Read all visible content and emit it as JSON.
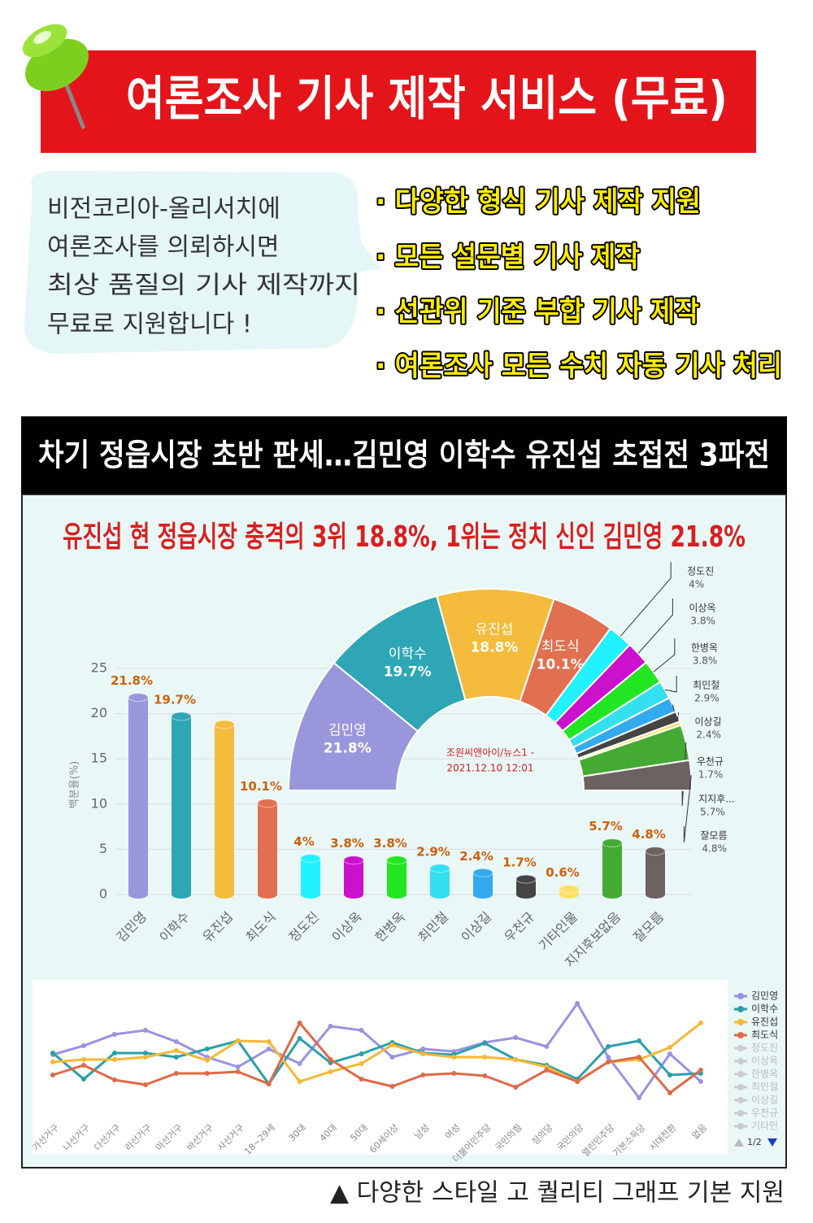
{
  "header": {
    "title": "여론조사 기사 제작 서비스 (무료)"
  },
  "intro": {
    "lines": [
      "비전코리아-올리서치에",
      "여론조사를 의뢰하시면",
      "최상 품질의 기사 제작까지",
      "무료로 지원합니다 !"
    ]
  },
  "features": [
    "· 다양한 형식 기사 제작 지원",
    "· 모든 설문별 기사 제작",
    "· 선관위 기준 부합 기사 제작",
    "· 여론조사 모든 수치 자동 기사 처리"
  ],
  "article": {
    "headline": "차기 정읍시장 초반 판세…김민영 이학수 유진섭 초접전 3파전",
    "subtitle": "유진섭 현 정읍시장 충격의 3위 18.8%, 1위는 정치 신인 김민영 21.8%"
  },
  "chart_data": [
    {
      "type": "bar",
      "y_label": "백분율(%)",
      "categories": [
        "김민영",
        "이학수",
        "유진섭",
        "최도식",
        "정도진",
        "이상옥",
        "한병옥",
        "최민철",
        "이상길",
        "우천규",
        "기타인물",
        "지지후보없음",
        "잘모름"
      ],
      "values": [
        21.8,
        19.7,
        18.8,
        10.1,
        4,
        3.8,
        3.8,
        2.9,
        2.4,
        1.7,
        0.6,
        5.7,
        4.8
      ],
      "value_labels": [
        "21.8%",
        "19.7%",
        null,
        "10.1%",
        "4%",
        "3.8%",
        "3.8%",
        "2.9%",
        "2.4%",
        "1.7%",
        "0.6%",
        "5.7%",
        "4.8%"
      ],
      "colors": [
        "#9a96dc",
        "#2ea6b5",
        "#f5bb3c",
        "#e07050",
        "#22f2ff",
        "#cc11cc",
        "#22e622",
        "#33e0f0",
        "#33aaee",
        "#444444",
        "#ffe066",
        "#44aa33",
        "#6d6262"
      ],
      "ylim": [
        0,
        25
      ],
      "yticks": [
        0,
        5,
        10,
        15,
        20,
        25
      ],
      "grid": true
    },
    {
      "type": "pie",
      "source": [
        "조원씨앤아이/뉴스1 -",
        "2021.12.10 12:01"
      ],
      "categories": [
        "김민영",
        "이학수",
        "유진섭",
        "최도식",
        "정도진",
        "이상옥",
        "한병옥",
        "최민철",
        "이상길",
        "우천규",
        null,
        "지지후...",
        "잘모름"
      ],
      "values": [
        21.8,
        19.7,
        18.8,
        10.1,
        4,
        3.8,
        3.8,
        2.9,
        2.4,
        1.7,
        0.6,
        5.7,
        4.8
      ],
      "value_labels": [
        "21.8%",
        "19.7%",
        "18.8%",
        "10.1%",
        "4%",
        "3.8%",
        "3.8%",
        "2.9%",
        "2.4%",
        "1.7%",
        null,
        "5.7%",
        "4.8%"
      ],
      "colors": [
        "#9a96dc",
        "#2ea6b5",
        "#f5bb3c",
        "#e07050",
        "#22f2ff",
        "#cc11cc",
        "#22e622",
        "#33e0f0",
        "#33aaee",
        "#444444",
        "#ffe066",
        "#44aa33",
        "#6d6262"
      ]
    },
    {
      "type": "line",
      "categories": [
        "가선거구",
        "나선거구",
        "다선거구",
        "라선거구",
        "마선거구",
        "바선거구",
        "사선거구",
        "18~29세",
        "30대",
        "40대",
        "50대",
        "60세이상",
        "남성",
        "여성",
        "더불어민주당",
        "국민의힘",
        "정의당",
        "국민의당",
        "열린민주당",
        "기본소득당",
        "시대전환",
        "없음"
      ],
      "ylim": [
        0,
        30
      ],
      "series": [
        {
          "name": "김민영",
          "color": "#9a92e0",
          "values": [
            14.6,
            16.8,
            19.6,
            20.6,
            17.8,
            14,
            11.6,
            16,
            12.4,
            21.6,
            20.6,
            14,
            16,
            15.4,
            17.6,
            18.8,
            16.6,
            27.2,
            14,
            4,
            14.8,
            8
          ]
        },
        {
          "name": "이학수",
          "color": "#2aa0a8",
          "values": [
            15,
            8.6,
            15,
            15,
            14,
            16,
            18,
            7.4,
            18.6,
            12.6,
            14.8,
            17.6,
            15,
            14.6,
            17.4,
            13.4,
            12,
            8.6,
            16.6,
            18,
            9.6,
            10
          ]
        },
        {
          "name": "유진섭",
          "color": "#f5b836",
          "values": [
            12.8,
            13.4,
            13.4,
            14,
            15.6,
            13.2,
            18,
            17.8,
            8,
            10.4,
            12.4,
            17,
            14.8,
            14,
            14,
            13.4,
            11.6,
            8,
            12.8,
            13.4,
            16.4,
            22.4
          ]
        },
        {
          "name": "최도식",
          "color": "#dd6a4a",
          "values": [
            9.6,
            12,
            8.4,
            7.2,
            10,
            10,
            10.4,
            7.4,
            22.4,
            13.4,
            8.6,
            6.8,
            9.6,
            10,
            9.4,
            6.6,
            10.8,
            8,
            12.8,
            14,
            5.2,
            10.8
          ]
        }
      ],
      "legend_hidden": [
        "정도진",
        "이상옥",
        "한병옥",
        "최민철",
        "이상길",
        "우천규",
        "기타인"
      ],
      "legend_page": "1/2"
    }
  ],
  "footer": {
    "caption": "▲ 다양한 스타일  고 퀄리티 그래프 기본 지원"
  }
}
